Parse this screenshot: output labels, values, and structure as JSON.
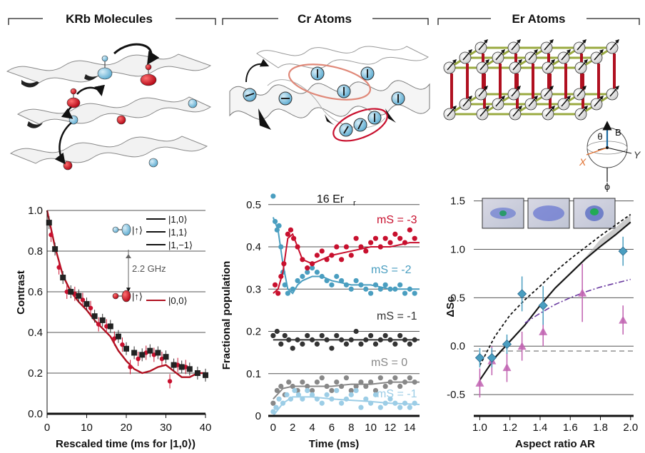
{
  "panels": [
    {
      "header": "KRb Molecules"
    },
    {
      "header": "Cr Atoms"
    },
    {
      "header": "Er Atoms"
    }
  ],
  "colors": {
    "red": "#c8102e",
    "black": "#222222",
    "blue": "#4a9ec0",
    "gray": "#888888",
    "lightblue": "#9ccde6",
    "purple": "#c060b0",
    "lattice_green": "#9aaa40",
    "pillar_red": "#b01020"
  },
  "chart_data": [
    {
      "type": "line",
      "xlabel": "Rescaled time (ms for |1,0⟩)",
      "ylabel": "Contrast",
      "xlim": [
        0,
        40
      ],
      "ylim": [
        0,
        1.0
      ],
      "xticks": [
        "0",
        "10",
        "20",
        "30",
        "40"
      ],
      "yticks": [
        "0.0",
        "0.2",
        "0.4",
        "0.6",
        "0.8",
        "1.0"
      ],
      "annotations": {
        "levels_top": [
          "|1,0⟩",
          "|1,1⟩",
          "|1,−1⟩"
        ],
        "state_up": "|↑⟩",
        "state_down": "|↑⟩",
        "level_bottom": "|0,0⟩",
        "gap": "2.2 GHz"
      },
      "series": [
        {
          "marker": "square",
          "color": "#222222",
          "x": [
            0.5,
            2,
            4,
            6,
            8,
            10,
            12,
            14,
            16,
            18,
            20,
            22,
            24,
            26,
            28,
            30,
            32,
            34,
            36,
            38,
            40
          ],
          "y": [
            0.94,
            0.81,
            0.67,
            0.6,
            0.58,
            0.54,
            0.48,
            0.46,
            0.43,
            0.38,
            0.32,
            0.3,
            0.29,
            0.31,
            0.3,
            0.28,
            0.24,
            0.23,
            0.22,
            0.2,
            0.19
          ]
        },
        {
          "marker": "circle",
          "color": "#c8102e",
          "x": [
            1,
            3,
            5,
            7,
            9,
            11,
            13,
            15,
            17,
            19,
            21,
            23,
            25,
            27,
            29,
            31,
            33,
            35
          ],
          "y": [
            0.88,
            0.72,
            0.6,
            0.59,
            0.56,
            0.52,
            0.44,
            0.43,
            0.37,
            0.34,
            0.23,
            0.27,
            0.3,
            0.29,
            0.27,
            0.16,
            0.24,
            0.23
          ]
        },
        {
          "line": "fit",
          "color": "#b01020",
          "x": [
            0,
            2,
            4,
            6,
            8,
            10,
            12,
            14,
            16,
            18,
            20,
            22,
            24,
            26,
            28,
            30,
            32,
            34,
            36,
            38,
            40
          ],
          "y": [
            1.0,
            0.82,
            0.68,
            0.6,
            0.55,
            0.51,
            0.46,
            0.42,
            0.38,
            0.31,
            0.26,
            0.22,
            0.2,
            0.21,
            0.23,
            0.24,
            0.21,
            0.18,
            0.18,
            0.2,
            0.2
          ]
        }
      ]
    },
    {
      "type": "scatter",
      "title": "16 Er",
      "xlabel": "Time (ms)",
      "ylabel": "Fractional population",
      "xlim": [
        -0.5,
        15
      ],
      "ylim": [
        0,
        0.53
      ],
      "xticks": [
        "0",
        "2",
        "4",
        "6",
        "8",
        "10",
        "12",
        "14"
      ],
      "yticks": [
        "0",
        "0.1",
        "0.2",
        "0.3",
        "0.4",
        "0.5"
      ],
      "series": [
        {
          "name": "mS = -3",
          "color": "#c8102e",
          "x": [
            0.2,
            0.5,
            0.8,
            1.1,
            1.5,
            1.8,
            2.1,
            2.5,
            3,
            3.5,
            4,
            4.5,
            5,
            5.5,
            6,
            6.5,
            7,
            7.5,
            8,
            8.5,
            9,
            9.5,
            10,
            10.5,
            11,
            11.5,
            12,
            12.5,
            13,
            13.5,
            14,
            14.5
          ],
          "y": [
            0.31,
            0.29,
            0.33,
            0.36,
            0.43,
            0.44,
            0.42,
            0.4,
            0.37,
            0.35,
            0.36,
            0.38,
            0.39,
            0.37,
            0.38,
            0.4,
            0.37,
            0.4,
            0.38,
            0.42,
            0.4,
            0.39,
            0.41,
            0.42,
            0.4,
            0.42,
            0.41,
            0.43,
            0.42,
            0.41,
            0.44,
            0.42
          ],
          "fit_x": [
            0,
            0.5,
            1,
            1.5,
            2,
            2.5,
            3,
            4,
            5,
            6,
            8,
            10,
            12,
            14,
            15
          ],
          "fit_y": [
            0.29,
            0.3,
            0.34,
            0.42,
            0.43,
            0.4,
            0.37,
            0.36,
            0.37,
            0.38,
            0.39,
            0.4,
            0.4,
            0.41,
            0.41
          ]
        },
        {
          "name": "mS = -2",
          "color": "#4a9ec0",
          "x": [
            0,
            0.2,
            0.4,
            0.6,
            0.8,
            1,
            1.2,
            1.5,
            2,
            2.5,
            3,
            3.5,
            4,
            4.5,
            5,
            5.5,
            6,
            6.5,
            7,
            7.5,
            8,
            8.5,
            9,
            9.5,
            10,
            10.5,
            11,
            11.5,
            12,
            12.5,
            13,
            13.5,
            14,
            14.5
          ],
          "y": [
            0.52,
            0.46,
            0.44,
            0.45,
            0.4,
            0.34,
            0.31,
            0.29,
            0.3,
            0.32,
            0.33,
            0.34,
            0.35,
            0.34,
            0.33,
            0.32,
            0.31,
            0.33,
            0.32,
            0.31,
            0.3,
            0.32,
            0.31,
            0.3,
            0.29,
            0.31,
            0.3,
            0.31,
            0.3,
            0.3,
            0.31,
            0.29,
            0.3,
            0.29
          ],
          "fit_x": [
            0,
            0.5,
            1,
            1.5,
            2,
            2.5,
            3,
            4,
            5,
            6,
            8,
            10,
            12,
            14,
            15
          ],
          "fit_y": [
            0.47,
            0.44,
            0.36,
            0.3,
            0.29,
            0.31,
            0.32,
            0.33,
            0.33,
            0.32,
            0.31,
            0.31,
            0.3,
            0.3,
            0.3
          ]
        },
        {
          "name": "mS = -1",
          "color": "#333333",
          "x": [
            0,
            0.4,
            0.8,
            1.2,
            1.6,
            2,
            2.5,
            3,
            3.5,
            4,
            4.5,
            5,
            5.5,
            6,
            6.5,
            7,
            7.5,
            8,
            8.5,
            9,
            9.5,
            10,
            10.5,
            11,
            11.5,
            12,
            12.5,
            13,
            13.5,
            14,
            14.5
          ],
          "y": [
            0.19,
            0.2,
            0.17,
            0.19,
            0.18,
            0.16,
            0.18,
            0.17,
            0.19,
            0.18,
            0.17,
            0.19,
            0.18,
            0.16,
            0.19,
            0.18,
            0.17,
            0.18,
            0.2,
            0.17,
            0.18,
            0.19,
            0.17,
            0.18,
            0.19,
            0.18,
            0.17,
            0.19,
            0.18,
            0.17,
            0.18
          ],
          "fit_x": [
            0,
            2,
            4,
            6,
            8,
            10,
            12,
            14,
            15
          ],
          "fit_y": [
            0.18,
            0.18,
            0.18,
            0.18,
            0.18,
            0.18,
            0.18,
            0.18,
            0.18
          ]
        },
        {
          "name": "mS = 0",
          "color": "#888888",
          "x": [
            0,
            0.4,
            0.8,
            1.2,
            1.6,
            2,
            2.5,
            3,
            3.5,
            4,
            4.5,
            5,
            5.5,
            6,
            6.5,
            7,
            7.5,
            8,
            8.5,
            9,
            9.5,
            10,
            10.5,
            11,
            11.5,
            12,
            12.5,
            13,
            13.5,
            14,
            14.5
          ],
          "y": [
            0.03,
            0.06,
            0.07,
            0.05,
            0.08,
            0.07,
            0.06,
            0.08,
            0.07,
            0.06,
            0.08,
            0.09,
            0.07,
            0.06,
            0.08,
            0.07,
            0.09,
            0.06,
            0.07,
            0.08,
            0.07,
            0.08,
            0.06,
            0.09,
            0.07,
            0.08,
            0.09,
            0.07,
            0.08,
            0.09,
            0.08
          ],
          "fit_x": [
            0,
            1,
            2,
            4,
            6,
            8,
            10,
            12,
            14,
            15
          ],
          "fit_y": [
            0.04,
            0.065,
            0.07,
            0.07,
            0.07,
            0.075,
            0.075,
            0.08,
            0.08,
            0.08
          ]
        },
        {
          "name": "mS = -1",
          "color": "#9ccde6",
          "x": [
            0,
            0.3,
            0.6,
            1,
            1.4,
            1.8,
            2.2,
            2.6,
            3,
            3.5,
            4,
            4.5,
            5,
            5.5,
            6,
            6.5,
            7,
            7.5,
            8,
            8.5,
            9,
            9.5,
            10,
            10.5,
            11,
            11.5,
            12,
            12.5,
            13,
            13.5,
            14,
            14.5
          ],
          "y": [
            0.01,
            0.02,
            0.04,
            0.03,
            0.05,
            0.04,
            0.06,
            0.05,
            0.04,
            0.06,
            0.05,
            0.04,
            0.03,
            0.05,
            0.04,
            0.06,
            0.03,
            0.04,
            0.05,
            0.06,
            0.02,
            0.04,
            0.03,
            0.05,
            0.02,
            0.03,
            0.04,
            0.03,
            0.02,
            0.03,
            0.02,
            0.03
          ],
          "fit_x": [
            0,
            1,
            2,
            4,
            6,
            8,
            10,
            12,
            14,
            15
          ],
          "fit_y": [
            0.0,
            0.03,
            0.045,
            0.045,
            0.04,
            0.037,
            0.034,
            0.03,
            0.028,
            0.027
          ]
        }
      ]
    },
    {
      "type": "line",
      "xlabel": "Aspect ratio AR",
      "ylabel": "ΔSc",
      "xlim": [
        0.96,
        2.02
      ],
      "ylim": [
        -0.72,
        1.6
      ],
      "xticks": [
        "1.0",
        "1.2",
        "1.4",
        "1.6",
        "1.8",
        "2.0"
      ],
      "yticks": [
        "-0.5",
        "0.0",
        "0.5",
        "1.0",
        "1.5"
      ],
      "series": [
        {
          "marker": "diamond",
          "color": "#4a9ec0",
          "x": [
            1.0,
            1.08,
            1.18,
            1.28,
            1.42,
            1.95
          ],
          "y": [
            -0.12,
            -0.12,
            0.02,
            0.54,
            0.42,
            0.98
          ],
          "err": [
            0.1,
            0.1,
            0.1,
            0.18,
            0.2,
            0.15
          ]
        },
        {
          "marker": "triangle",
          "color": "#c060b0",
          "x": [
            1.0,
            1.08,
            1.18,
            1.28,
            1.42,
            1.68,
            1.95
          ],
          "y": [
            -0.38,
            -0.15,
            -0.22,
            0.0,
            0.15,
            0.55,
            0.27
          ],
          "err": [
            0.15,
            0.15,
            0.15,
            0.15,
            0.15,
            0.3,
            0.15
          ]
        },
        {
          "line": "solid",
          "color": "#111111",
          "x": [
            1.0,
            1.1,
            1.2,
            1.3,
            1.4,
            1.5,
            1.6,
            1.7,
            1.8,
            1.9,
            2.0
          ],
          "y": [
            -0.35,
            -0.12,
            0.05,
            0.22,
            0.42,
            0.6,
            0.75,
            0.9,
            1.03,
            1.15,
            1.28
          ]
        },
        {
          "line": "dashed",
          "color": "#111111",
          "x": [
            1.0,
            1.1,
            1.2,
            1.3,
            1.4,
            1.5,
            1.6,
            1.7,
            1.8,
            1.9,
            2.0
          ],
          "y": [
            -0.2,
            0.1,
            0.32,
            0.48,
            0.62,
            0.77,
            0.9,
            1.02,
            1.14,
            1.25,
            1.36
          ]
        },
        {
          "line": "dashdot",
          "color": "#6a3aa0",
          "x": [
            1.3,
            1.4,
            1.5,
            1.6,
            1.7,
            1.8,
            1.9,
            2.0
          ],
          "y": [
            0.24,
            0.34,
            0.43,
            0.5,
            0.56,
            0.61,
            0.65,
            0.69
          ]
        },
        {
          "line": "gray-dashed",
          "color": "#888888",
          "x": [
            0.96,
            2.02
          ],
          "y": [
            -0.05,
            -0.05
          ]
        }
      ]
    }
  ],
  "diagram_labels": {
    "er_theta": "θ",
    "er_b": "B",
    "er_x": "X",
    "er_y": "Y",
    "er_phi": "ϕ"
  }
}
